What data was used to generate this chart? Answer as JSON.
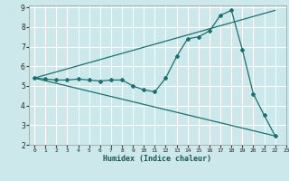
{
  "xlabel": "Humidex (Indice chaleur)",
  "xlim": [
    -0.5,
    23
  ],
  "ylim": [
    2,
    9.1
  ],
  "yticks": [
    2,
    3,
    4,
    5,
    6,
    7,
    8,
    9
  ],
  "xticks": [
    0,
    1,
    2,
    3,
    4,
    5,
    6,
    7,
    8,
    9,
    10,
    11,
    12,
    13,
    14,
    15,
    16,
    17,
    18,
    19,
    20,
    21,
    22,
    23
  ],
  "bg_color": "#cce8ea",
  "line_color": "#1a7070",
  "grid_color": "#ffffff",
  "line1_x": [
    0,
    1,
    2,
    3,
    4,
    5,
    6,
    7,
    8,
    9,
    10,
    11,
    12,
    13,
    14,
    15,
    16,
    17,
    18,
    19,
    20,
    21,
    22
  ],
  "line1_y": [
    5.4,
    5.35,
    5.3,
    5.3,
    5.35,
    5.3,
    5.25,
    5.3,
    5.3,
    5.0,
    4.8,
    4.7,
    5.4,
    6.5,
    7.4,
    7.5,
    7.8,
    8.6,
    8.85,
    6.85,
    4.6,
    3.5,
    2.45
  ],
  "line2_x": [
    0,
    22
  ],
  "line2_y": [
    5.4,
    8.85
  ],
  "line3_x": [
    0,
    22
  ],
  "line3_y": [
    5.4,
    2.45
  ]
}
